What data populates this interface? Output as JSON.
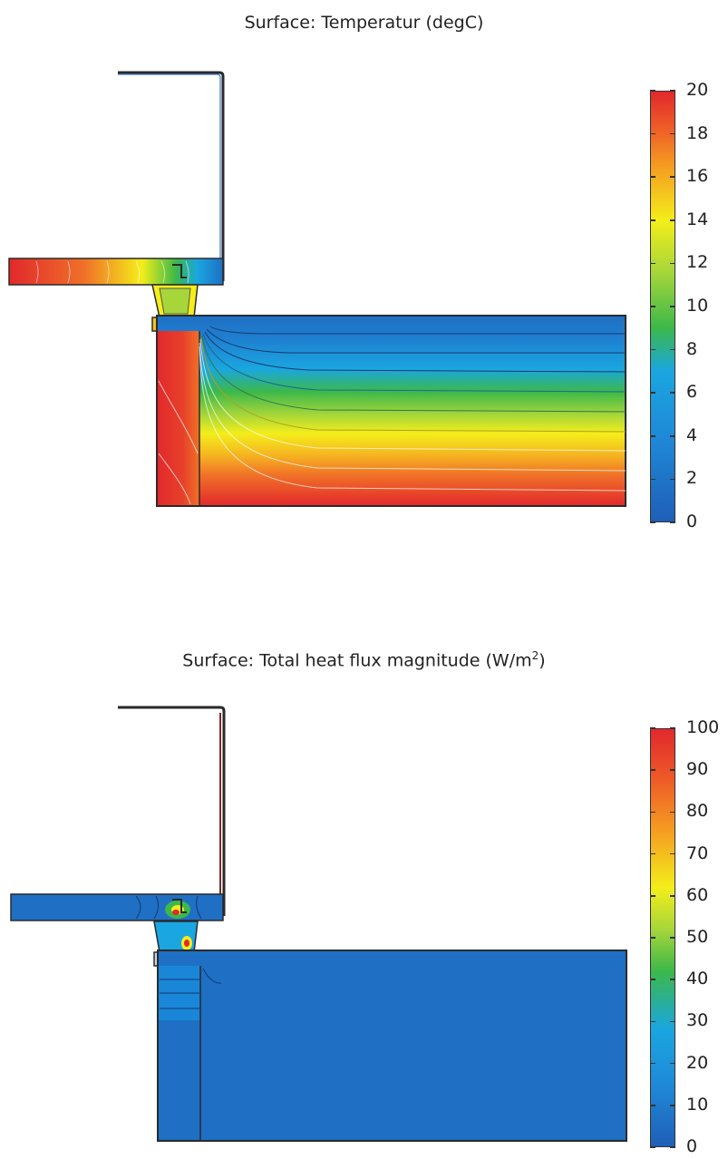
{
  "plots": [
    {
      "title": "Surface: Temperatur (degC)",
      "colorbar": {
        "min": 0,
        "max": 20,
        "ticks": [
          "0",
          "2",
          "4",
          "6",
          "8",
          "10",
          "12",
          "14",
          "16",
          "18",
          "20"
        ]
      }
    },
    {
      "title": "Surface: Total heat flux magnitude (W/m",
      "title_sup": "2",
      "title_suffix": ")",
      "colorbar": {
        "min": 0,
        "max": 100,
        "ticks": [
          "0",
          "10",
          "20",
          "30",
          "40",
          "50",
          "60",
          "70",
          "80",
          "90",
          "100"
        ]
      }
    }
  ],
  "colors": {
    "cold": "#1f6fc4",
    "cyan": "#1aa6e0",
    "green": "#3cb84a",
    "yellow": "#f4ee1a",
    "orange": "#f38a22",
    "hot": "#e2282c",
    "outline": "#2a2a2a"
  }
}
